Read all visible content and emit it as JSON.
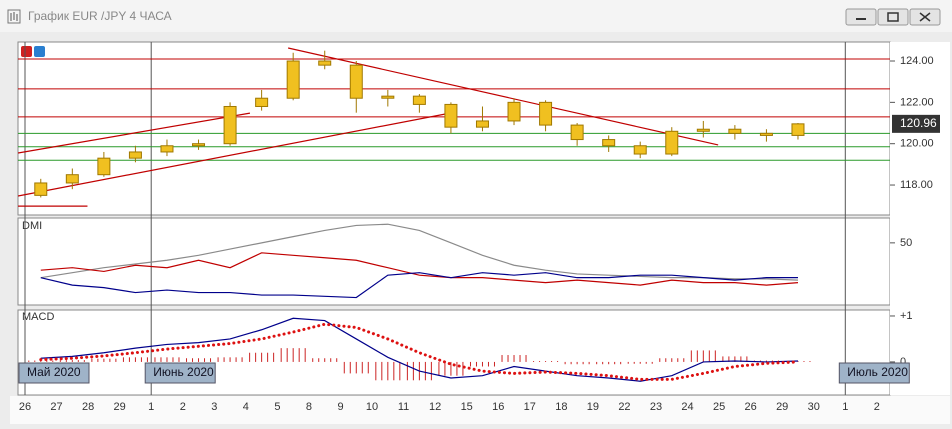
{
  "window": {
    "title": "График EUR /JPY  4 ЧАСА"
  },
  "x_axis": {
    "categories": [
      "26",
      "27",
      "28",
      "29",
      "1",
      "2",
      "3",
      "4",
      "5",
      "8",
      "9",
      "10",
      "11",
      "12",
      "15",
      "16",
      "17",
      "18",
      "19",
      "22",
      "23",
      "24",
      "25",
      "26",
      "29",
      "30",
      "1",
      "2"
    ],
    "months": [
      "Май 2020",
      null,
      null,
      null,
      "Июнь 2020",
      null,
      null,
      null,
      null,
      null,
      null,
      null,
      null,
      null,
      null,
      null,
      null,
      null,
      null,
      null,
      null,
      null,
      null,
      null,
      null,
      null,
      "Июль 2020",
      null
    ]
  },
  "chart_data": [
    {
      "type": "candlestick",
      "color": "#f0c020",
      "edge_color": "#a07800",
      "open": [
        117.5,
        118.1,
        118.5,
        119.3,
        119.6,
        119.9,
        120.0,
        121.8,
        122.2,
        124.0,
        123.8,
        122.2,
        122.3,
        121.9,
        120.8,
        121.1,
        122.0,
        120.9,
        120.2,
        119.9,
        119.5,
        120.6,
        120.7,
        120.5,
        120.4,
        null,
        null,
        null
      ],
      "high": [
        118.3,
        118.8,
        119.6,
        119.9,
        120.2,
        120.2,
        122.0,
        122.6,
        124.4,
        124.5,
        124.0,
        122.6,
        122.4,
        122.0,
        121.8,
        122.2,
        122.1,
        121.0,
        120.4,
        120.1,
        120.8,
        121.1,
        120.9,
        120.7,
        121.0,
        null,
        null,
        null
      ],
      "low": [
        117.4,
        117.8,
        118.4,
        119.1,
        119.4,
        119.7,
        119.9,
        121.6,
        122.1,
        123.6,
        121.5,
        121.8,
        121.5,
        120.5,
        120.6,
        120.9,
        120.6,
        119.9,
        119.6,
        119.3,
        119.4,
        120.3,
        120.2,
        120.1,
        120.2,
        null,
        null,
        null
      ],
      "close": [
        118.1,
        118.5,
        119.3,
        119.6,
        119.9,
        120.0,
        121.8,
        122.2,
        124.0,
        123.8,
        122.2,
        122.3,
        121.9,
        120.8,
        121.1,
        122.0,
        120.9,
        120.2,
        119.9,
        119.5,
        120.6,
        120.7,
        120.5,
        120.4,
        120.96,
        null,
        null,
        null
      ],
      "ylim": [
        116.55,
        124.92
      ],
      "yticks": [
        {
          "value": 124,
          "label": "124.00"
        },
        {
          "value": 122,
          "label": "122.00"
        },
        {
          "value": 120,
          "label": "120.00"
        },
        {
          "value": 118,
          "label": "118.00"
        }
      ],
      "last_price": 120.96,
      "levels": [
        {
          "value": 124.1,
          "color": "#c00000"
        },
        {
          "value": 122.65,
          "color": "#c00000"
        },
        {
          "value": 121.3,
          "color": "#c00000"
        },
        {
          "value": 120.5,
          "color": "#2a9a2a"
        },
        {
          "value": 119.85,
          "color": "#2a9a2a"
        },
        {
          "value": 119.2,
          "color": "#2a9a2a"
        }
      ],
      "trendlines": [
        {
          "x": [
            -0.22,
            7.13
          ],
          "y": [
            119.55,
            121.48
          ],
          "color": "#c00000"
        },
        {
          "x": [
            -0.22,
            13.47
          ],
          "y": [
            117.47,
            121.48
          ],
          "color": "#c00000"
        },
        {
          "x": [
            8.34,
            21.97
          ],
          "y": [
            124.63,
            119.94
          ],
          "color": "#c00000"
        },
        {
          "x": [
            -0.22,
            1.98
          ],
          "y": [
            116.98,
            116.98
          ],
          "color": "#c00000"
        }
      ]
    },
    {
      "type": "line",
      "title": "DMI",
      "ylim": [
        0,
        70
      ],
      "yticks": [
        50
      ],
      "series": [
        {
          "color": "#8a8a8a",
          "values": [
            22,
            26,
            30,
            33,
            36,
            40,
            45,
            50,
            55,
            60,
            64,
            65,
            60,
            50,
            40,
            32,
            28,
            25,
            24,
            23,
            22,
            22,
            21,
            21,
            20,
            null,
            null,
            null
          ]
        },
        {
          "color": "#c00000",
          "values": [
            28,
            30,
            27,
            32,
            30,
            36,
            30,
            42,
            40,
            38,
            36,
            30,
            24,
            22,
            22,
            20,
            18,
            20,
            18,
            16,
            20,
            18,
            18,
            16,
            18,
            null,
            null,
            null
          ]
        },
        {
          "color": "#00008b",
          "values": [
            22,
            16,
            14,
            10,
            12,
            10,
            10,
            8,
            8,
            7,
            6,
            24,
            26,
            22,
            26,
            24,
            26,
            22,
            22,
            24,
            24,
            22,
            20,
            22,
            22,
            null,
            null,
            null
          ]
        }
      ]
    },
    {
      "type": "line",
      "title": "MACD",
      "ylim": [
        -0.72,
        1.13
      ],
      "yticks": [
        {
          "value": 1,
          "label": "+1"
        },
        0
      ],
      "series": [
        {
          "color": "#cc2222",
          "kind": "bar",
          "values": [
            0.03,
            0.04,
            0.07,
            0.1,
            0.1,
            0.08,
            0.1,
            0.2,
            0.3,
            0.08,
            -0.25,
            -0.4,
            -0.4,
            -0.3,
            -0.1,
            0.15,
            0.02,
            -0.05,
            -0.05,
            -0.04,
            0.08,
            0.25,
            0.12,
            0.03,
            0.02,
            null,
            null,
            null
          ]
        },
        {
          "color": "#00008b",
          "values": [
            0.08,
            0.12,
            0.2,
            0.3,
            0.38,
            0.42,
            0.5,
            0.7,
            0.95,
            0.9,
            0.5,
            0.1,
            -0.2,
            -0.35,
            -0.3,
            -0.1,
            -0.2,
            -0.3,
            -0.35,
            -0.42,
            -0.3,
            0.0,
            0.02,
            0.0,
            0.02,
            null,
            null,
            null
          ]
        },
        {
          "color": "#dd1111",
          "kind": "dotted",
          "values": [
            0.05,
            0.08,
            0.13,
            0.2,
            0.28,
            0.34,
            0.4,
            0.5,
            0.65,
            0.82,
            0.75,
            0.5,
            0.2,
            -0.05,
            -0.2,
            -0.25,
            -0.22,
            -0.25,
            -0.3,
            -0.38,
            -0.38,
            -0.25,
            -0.1,
            -0.03,
            0.0,
            null,
            null,
            null
          ]
        }
      ]
    }
  ]
}
